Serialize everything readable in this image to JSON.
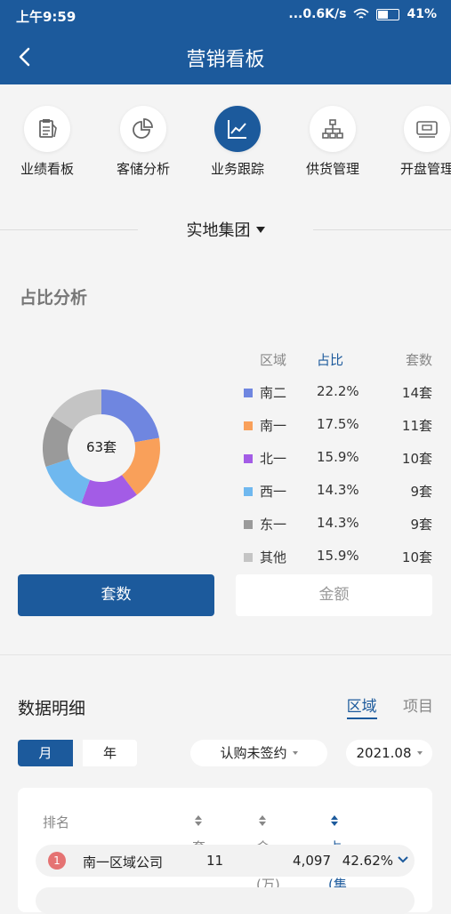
{
  "status_bar": {
    "time": "上午9:59",
    "network": "...0.6K/s",
    "battery": "41%"
  },
  "header": {
    "title": "营销看板"
  },
  "categories": [
    {
      "label": "业绩看板",
      "icon": "clipboard-icon",
      "active": false
    },
    {
      "label": "客储分析",
      "icon": "pie-chart-icon",
      "active": false
    },
    {
      "label": "业务跟踪",
      "icon": "line-chart-icon",
      "active": true
    },
    {
      "label": "供货管理",
      "icon": "hierarchy-icon",
      "active": false
    },
    {
      "label": "开盘管理",
      "icon": "cash-icon",
      "active": false
    }
  ],
  "group_selector": {
    "label": "实地集团"
  },
  "share_section": {
    "title": "占比分析",
    "headers": {
      "region": "区域",
      "share": "占比",
      "count": "套数"
    },
    "center_label": "63套",
    "rows": [
      {
        "region": "南二",
        "share": "22.2%",
        "count": "14套",
        "color": "#6f86e0"
      },
      {
        "region": "南一",
        "share": "17.5%",
        "count": "11套",
        "color": "#f9a05a"
      },
      {
        "region": "北一",
        "share": "15.9%",
        "count": "10套",
        "color": "#a35ce6"
      },
      {
        "region": "西一",
        "share": "14.3%",
        "count": "9套",
        "color": "#6fb8ef"
      },
      {
        "region": "东一",
        "share": "14.3%",
        "count": "9套",
        "color": "#9a9a9a"
      },
      {
        "region": "其他",
        "share": "15.9%",
        "count": "10套",
        "color": "#c4c4c4"
      }
    ],
    "buttons": {
      "count": "套数",
      "amount": "金额"
    }
  },
  "detail_section": {
    "title": "数据明细",
    "tabs": {
      "region": "区域",
      "project": "项目"
    },
    "period": {
      "month": "月",
      "year": "年"
    },
    "status_filter": "认购未签约",
    "date_filter": "2021.08",
    "table_headers": {
      "rank": "排名",
      "count": "套数",
      "amount": "金额(万)",
      "share": "占比(集团)"
    },
    "rows": [
      {
        "rank": "1",
        "name": "南一区域公司",
        "count": "11",
        "amount": "4,097",
        "share": "42.62%"
      }
    ]
  },
  "colors": {
    "brand": "#1c5a9c"
  }
}
